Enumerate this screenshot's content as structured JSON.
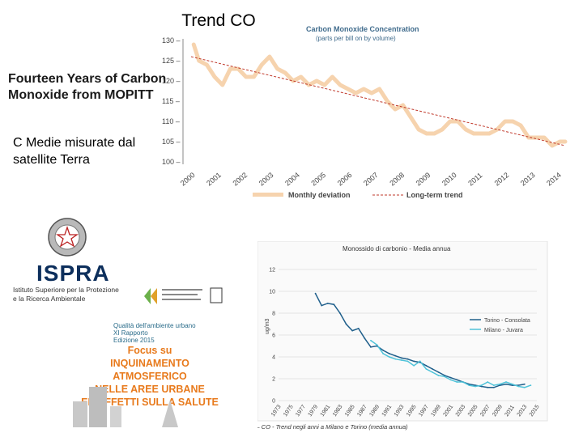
{
  "slide": {
    "title": "Trend CO",
    "subtitle": "Fourteen Years of Carbon Monoxide from MOPITT",
    "caption": "C Medie misurate dal satellite Terra"
  },
  "report_cover": {
    "org_logo": "ISPRA",
    "org_name_line1": "Istituto Superiore per la Protezione",
    "org_name_line2": "e la Ricerca Ambientale",
    "report_title": "Qualità dell'ambiente urbano",
    "report_edition": "XI Rapporto",
    "report_date": "Edizione 2015",
    "focus_lines": [
      "Focus su",
      "INQUINAMENTO",
      "ATMOSFERICO",
      "NELLE AREE URBANE",
      "ED EFFETTI SULLA SALUTE"
    ],
    "icons": [
      "emblem-icon",
      "partner-logo-icon",
      "city-graphic-icon"
    ]
  },
  "chart_data": [
    {
      "type": "line",
      "title": "Carbon Monoxide Concentration",
      "subtitle": "(parts per bill on by volume)",
      "ylim": [
        100,
        130
      ],
      "yticks": [
        "100 –",
        "105 –",
        "110 –",
        "115 –",
        "120 –",
        "125 –",
        "130 –"
      ],
      "xlim": [
        2000,
        2014.3
      ],
      "xticks": [
        "2000",
        "2001",
        "2002",
        "2003",
        "2004",
        "2005",
        "2006",
        "2007",
        "2008",
        "2009",
        "2010",
        "2011",
        "2012",
        "2013",
        "2014"
      ],
      "legend": [
        "Monthly deviation",
        "Long-term trend"
      ],
      "colors": {
        "series": "#f6d3ae",
        "trend": "#c0392b",
        "axis": "#555555"
      },
      "series": [
        {
          "name": "Monthly deviation",
          "x": [
            2000.1,
            2000.3,
            2000.6,
            2000.9,
            2001.2,
            2001.5,
            2001.8,
            2002.1,
            2002.4,
            2002.7,
            2003.0,
            2003.3,
            2003.6,
            2003.9,
            2004.2,
            2004.5,
            2004.8,
            2005.1,
            2005.4,
            2005.7,
            2006.0,
            2006.3,
            2006.6,
            2006.9,
            2007.2,
            2007.5,
            2007.8,
            2008.1,
            2008.4,
            2008.7,
            2009.0,
            2009.3,
            2009.6,
            2009.9,
            2010.2,
            2010.5,
            2010.8,
            2011.1,
            2011.4,
            2011.7,
            2012.0,
            2012.3,
            2012.6,
            2012.9,
            2013.2,
            2013.5,
            2013.8,
            2014.1,
            2014.3
          ],
          "values": [
            129,
            125,
            124,
            121,
            119,
            123,
            123,
            121,
            121,
            124,
            126,
            123,
            122,
            120,
            121,
            119,
            120,
            119,
            121,
            119,
            118,
            117,
            118,
            117,
            118,
            115,
            113,
            114,
            111,
            108,
            107,
            107,
            108,
            110,
            110,
            108,
            107,
            107,
            107,
            108,
            110,
            110,
            109,
            106,
            106,
            106,
            104,
            105,
            105
          ]
        },
        {
          "name": "Long-term trend",
          "x": [
            2000,
            2014.3
          ],
          "values": [
            126,
            104
          ]
        }
      ]
    },
    {
      "type": "line",
      "title": "Monossido di carbonio - Media annua",
      "ylabel": "ug/m3",
      "ylim": [
        0,
        12
      ],
      "yticks": [
        "0",
        "2",
        "4",
        "6",
        "8",
        "10",
        "12"
      ],
      "xlim": [
        1973,
        2015
      ],
      "xticks": [
        "1973",
        "1975",
        "1977",
        "1979",
        "1981",
        "1983",
        "1985",
        "1987",
        "1989",
        "1991",
        "1993",
        "1995",
        "1997",
        "1999",
        "2001",
        "2003",
        "2005",
        "2007",
        "2009",
        "2011",
        "2013",
        "2015"
      ],
      "caption": "16 – CO - Trend negli anni a Milano e Torino (media annua)",
      "legend_position": "right",
      "colors": {
        "torino": "#1f5f8b",
        "milano": "#4fc3d9",
        "grid": "#dddddd"
      },
      "series": [
        {
          "name": "Torino - Consolata",
          "x": [
            1979,
            1980,
            1981,
            1982,
            1983,
            1984,
            1985,
            1986,
            1987,
            1988,
            1989,
            1990,
            1991,
            1992,
            1993,
            1994,
            1995,
            1996,
            1997,
            1998,
            1999,
            2000,
            2001,
            2002,
            2003,
            2004,
            2005,
            2006,
            2007,
            2008,
            2009,
            2010,
            2011,
            2012,
            2013
          ],
          "values": [
            9.8,
            8.7,
            8.9,
            8.8,
            8.0,
            7.0,
            6.4,
            6.6,
            5.7,
            4.9,
            5.0,
            4.6,
            4.3,
            4.1,
            3.9,
            3.8,
            3.6,
            3.5,
            3.2,
            2.9,
            2.6,
            2.3,
            2.1,
            1.9,
            1.7,
            1.5,
            1.4,
            1.3,
            1.2,
            1.2,
            1.4,
            1.5,
            1.4,
            1.4,
            1.5
          ]
        },
        {
          "name": "Milano - Juvara",
          "x": [
            1988,
            1989,
            1990,
            1991,
            1992,
            1993,
            1994,
            1995,
            1996,
            1997,
            1998,
            1999,
            2000,
            2001,
            2002,
            2003,
            2004,
            2005,
            2006,
            2007,
            2008,
            2009,
            2010,
            2011,
            2012,
            2013,
            2014
          ],
          "values": [
            5.5,
            5.1,
            4.3,
            4.0,
            3.8,
            3.7,
            3.6,
            3.2,
            3.6,
            2.9,
            2.6,
            2.3,
            2.2,
            1.9,
            1.7,
            1.7,
            1.4,
            1.3,
            1.4,
            1.7,
            1.4,
            1.5,
            1.7,
            1.5,
            1.3,
            1.2,
            1.4
          ]
        }
      ]
    }
  ]
}
